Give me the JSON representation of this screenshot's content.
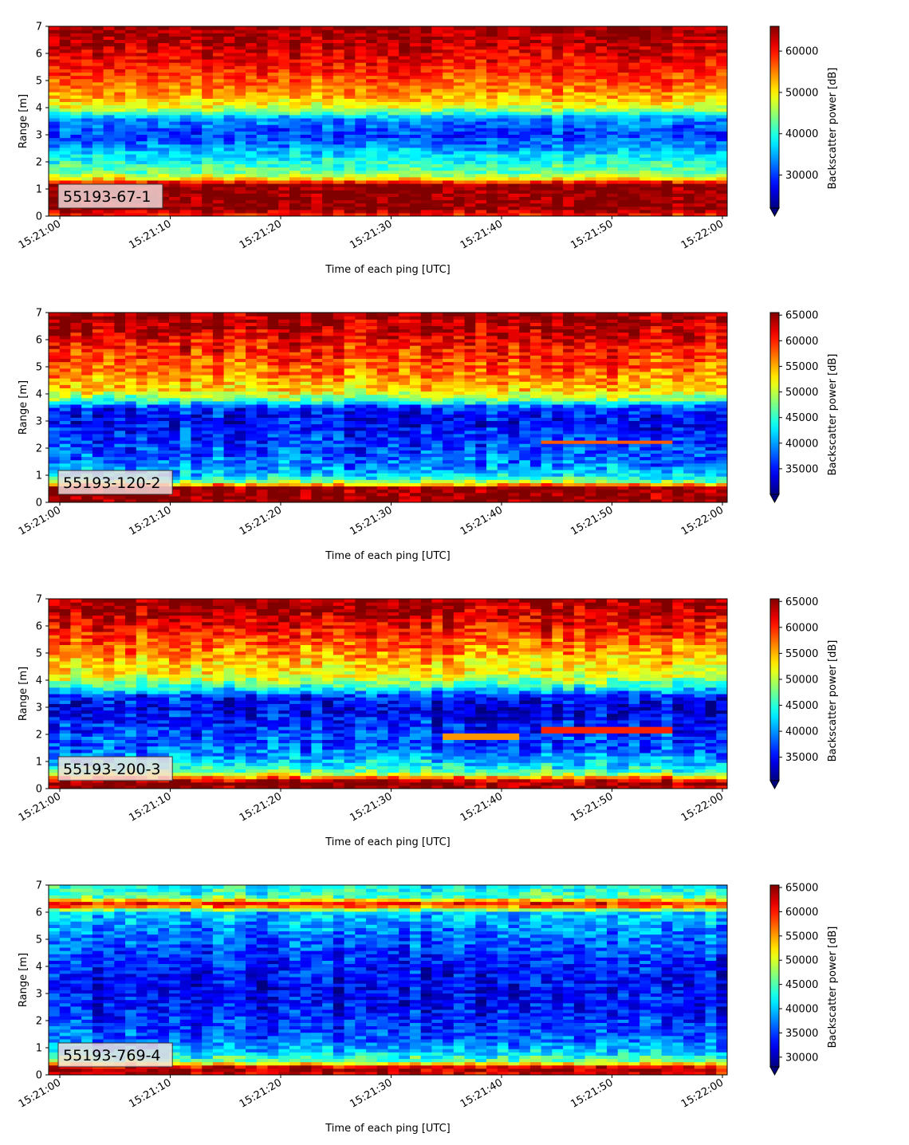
{
  "chart_data": [
    {
      "type": "heatmap",
      "panel_label": "55193-67-1",
      "xlabel": "Time of each ping [UTC]",
      "ylabel": "Range [m]",
      "x_range": [
        "15:21:00",
        "15:22:00"
      ],
      "x_ticks": [
        "15:21:00",
        "15:21:10",
        "15:21:20",
        "15:21:30",
        "15:21:40",
        "15:21:50",
        "15:22:00"
      ],
      "ylim": [
        0,
        7
      ],
      "y_ticks": [
        "0",
        "1",
        "2",
        "3",
        "4",
        "5",
        "6",
        "7"
      ],
      "colorbar": {
        "label": "Backscatter power [dB]",
        "colormap": "jet",
        "range": [
          22000,
          66000
        ],
        "ticks": [
          30000,
          40000,
          50000,
          60000
        ],
        "tick_labels": [
          "30000",
          "40000",
          "50000",
          "60000"
        ],
        "extend": "min"
      },
      "profile": {
        "range_m": [
          0.1,
          0.25,
          0.5,
          1.0,
          1.2,
          1.35,
          1.6,
          2.0,
          2.5,
          3.0,
          3.6,
          4.0,
          4.5,
          5.0,
          5.5,
          6.0,
          6.5,
          7.0
        ],
        "power": [
          60000,
          66000,
          66000,
          66000,
          66000,
          52000,
          44000,
          40000,
          35000,
          30000,
          34000,
          48000,
          54000,
          57000,
          60000,
          62000,
          64000,
          65500
        ]
      },
      "features": []
    },
    {
      "type": "heatmap",
      "panel_label": "55193-120-2",
      "xlabel": "Time of each ping [UTC]",
      "ylabel": "Range [m]",
      "x_range": [
        "15:21:00",
        "15:22:00"
      ],
      "x_ticks": [
        "15:21:00",
        "15:21:10",
        "15:21:20",
        "15:21:30",
        "15:21:40",
        "15:21:50",
        "15:22:00"
      ],
      "ylim": [
        0,
        7
      ],
      "y_ticks": [
        "0",
        "1",
        "2",
        "3",
        "4",
        "5",
        "6",
        "7"
      ],
      "colorbar": {
        "label": "Backscatter power [dB]",
        "colormap": "jet",
        "range": [
          30000,
          65500
        ],
        "ticks": [
          35000,
          40000,
          45000,
          50000,
          55000,
          60000,
          65000
        ],
        "tick_labels": [
          "35000",
          "40000",
          "45000",
          "50000",
          "55000",
          "60000",
          "65000"
        ],
        "extend": "min"
      },
      "profile": {
        "range_m": [
          0.1,
          0.3,
          0.55,
          0.7,
          0.9,
          1.2,
          1.6,
          2.0,
          2.5,
          3.0,
          3.5,
          3.8,
          4.2,
          4.8,
          5.5,
          6.0,
          6.5,
          7.0
        ],
        "power": [
          65500,
          65500,
          65500,
          52000,
          44000,
          40000,
          38000,
          37000,
          36000,
          34000,
          36000,
          47000,
          54000,
          57000,
          59500,
          61500,
          63500,
          65000
        ]
      },
      "features": [
        {
          "t_start": 44,
          "t_end": 55,
          "range_m": 2.25,
          "power": 58000
        }
      ]
    },
    {
      "type": "heatmap",
      "panel_label": "55193-200-3",
      "xlabel": "Time of each ping [UTC]",
      "ylabel": "Range [m]",
      "x_range": [
        "15:21:00",
        "15:22:00"
      ],
      "x_ticks": [
        "15:21:00",
        "15:21:10",
        "15:21:20",
        "15:21:30",
        "15:21:40",
        "15:21:50",
        "15:22:00"
      ],
      "ylim": [
        0,
        7
      ],
      "y_ticks": [
        "0",
        "1",
        "2",
        "3",
        "4",
        "5",
        "6",
        "7"
      ],
      "colorbar": {
        "label": "Backscatter power [dB]",
        "colormap": "jet",
        "range": [
          30500,
          65500
        ],
        "ticks": [
          35000,
          40000,
          45000,
          50000,
          55000,
          60000,
          65000
        ],
        "tick_labels": [
          "35000",
          "40000",
          "45000",
          "50000",
          "55000",
          "60000",
          "65000"
        ],
        "extend": "min"
      },
      "profile": {
        "range_m": [
          0.1,
          0.25,
          0.4,
          0.6,
          0.9,
          1.2,
          1.6,
          2.0,
          2.5,
          3.0,
          3.4,
          3.8,
          4.2,
          4.8,
          5.5,
          6.0,
          6.5,
          7.0
        ],
        "power": [
          65000,
          65500,
          58000,
          47000,
          43000,
          40000,
          38000,
          37000,
          35500,
          34000,
          36000,
          46000,
          52000,
          55000,
          58500,
          61500,
          64000,
          65000
        ]
      },
      "features": [
        {
          "t_start": 35,
          "t_end": 42,
          "range_m": 1.95,
          "power": 56000
        },
        {
          "t_start": 44,
          "t_end": 55,
          "range_m": 2.2,
          "power": 60000
        }
      ]
    },
    {
      "type": "heatmap",
      "panel_label": "55193-769-4",
      "xlabel": "Time of each ping [UTC]",
      "ylabel": "Range [m]",
      "x_range": [
        "15:21:00",
        "15:22:00"
      ],
      "x_ticks": [
        "15:21:00",
        "15:21:10",
        "15:21:20",
        "15:21:30",
        "15:21:40",
        "15:21:50",
        "15:22:00"
      ],
      "ylim": [
        0,
        7
      ],
      "y_ticks": [
        "0",
        "1",
        "2",
        "3",
        "4",
        "5",
        "6",
        "7"
      ],
      "colorbar": {
        "label": "Backscatter power [dB]",
        "colormap": "jet",
        "range": [
          28000,
          65500
        ],
        "ticks": [
          30000,
          35000,
          40000,
          45000,
          50000,
          55000,
          60000,
          65000
        ],
        "tick_labels": [
          "30000",
          "35000",
          "40000",
          "45000",
          "50000",
          "55000",
          "60000",
          "65000"
        ],
        "extend": "min"
      },
      "profile": {
        "range_m": [
          0.1,
          0.25,
          0.35,
          0.5,
          0.8,
          1.2,
          1.6,
          2.0,
          2.5,
          3.0,
          3.5,
          4.0,
          4.5,
          5.0,
          5.5,
          6.0,
          6.3,
          6.6,
          7.0
        ],
        "power": [
          62000,
          65500,
          58000,
          46000,
          41000,
          37000,
          35000,
          34000,
          33000,
          32500,
          32500,
          33000,
          34500,
          36000,
          38000,
          40000,
          62000,
          44000,
          42000
        ]
      },
      "features": []
    }
  ]
}
